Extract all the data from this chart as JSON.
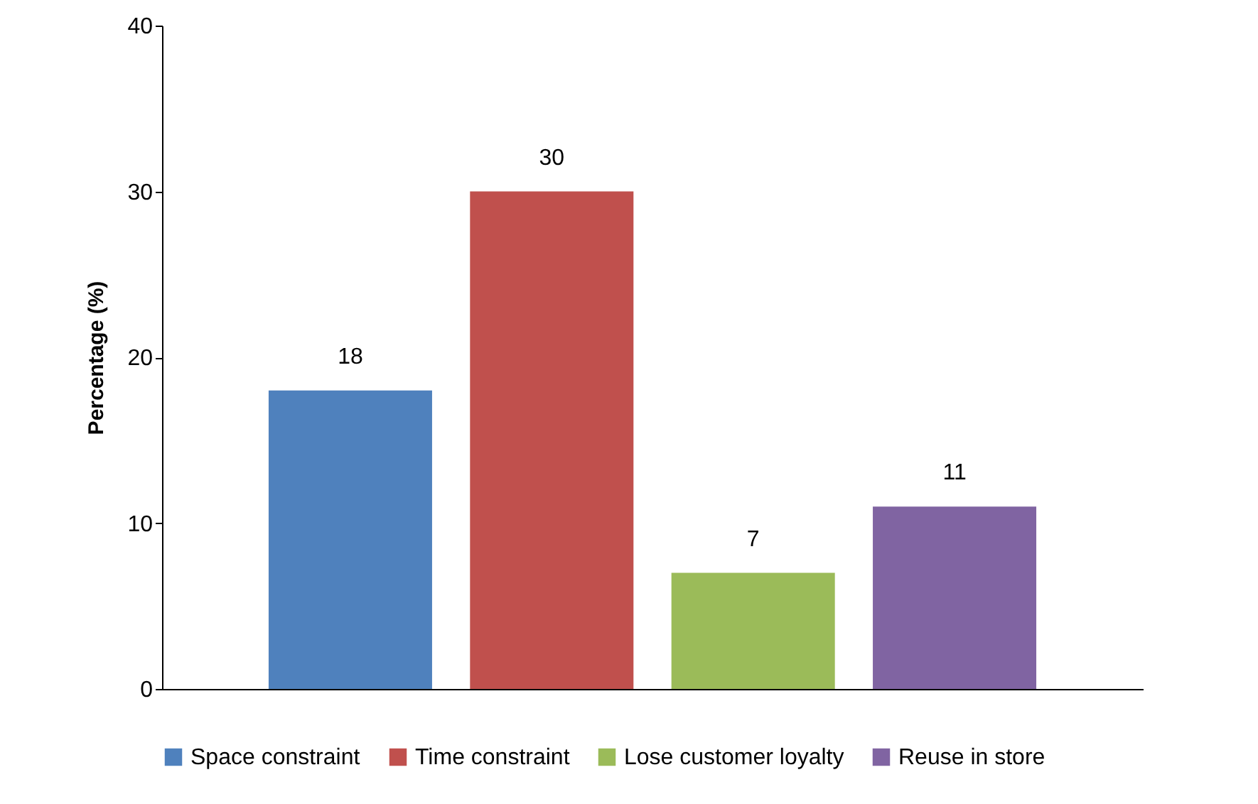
{
  "chart_data": {
    "type": "bar",
    "ylabel": "Percentage (%)",
    "categories": [
      null,
      null,
      null,
      null
    ],
    "series": [
      {
        "name": "Space constraint",
        "color": "#4f81bd",
        "values": [
          18,
          null,
          null,
          null
        ]
      },
      {
        "name": "Time constraint",
        "color": "#c0504d",
        "values": [
          null,
          30,
          null,
          null
        ]
      },
      {
        "name": "Lose customer loyalty",
        "color": "#9bbb59",
        "values": [
          null,
          null,
          7,
          null
        ]
      },
      {
        "name": "Reuse in store",
        "color": "#8064a2",
        "values": [
          null,
          null,
          null,
          11
        ]
      }
    ],
    "ylim": [
      0,
      40
    ],
    "yticks": [
      0,
      10,
      20,
      30,
      40
    ],
    "grid": false,
    "legend": "bottom",
    "data_labels": true,
    "tick_labels": "y"
  }
}
